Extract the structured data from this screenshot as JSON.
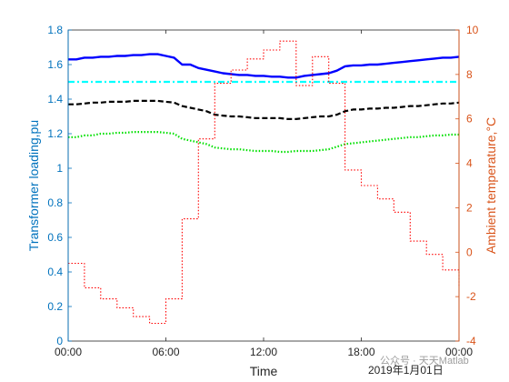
{
  "chart_data": {
    "type": "line",
    "xlabel": "Time",
    "x_tick_labels": [
      "00:00",
      "06:00",
      "12:00",
      "18:00",
      "00:00"
    ],
    "x_tick_hours": [
      0,
      6,
      12,
      18,
      24
    ],
    "x_date_note": "2019年1月01日",
    "xlim": [
      0,
      24
    ],
    "left_axis": {
      "label": "Transformer loading,pu",
      "ylim": [
        0,
        1.8
      ],
      "ticks": [
        "0",
        "0.2",
        "0.4",
        "0.6",
        "0.8",
        "1",
        "1.2",
        "1.4",
        "1.6",
        "1.8"
      ],
      "color": "#0072BD"
    },
    "right_axis": {
      "label": "Ambient temperature,°C",
      "ylim": [
        -4,
        10
      ],
      "ticks": [
        "-4",
        "-2",
        "0",
        "2",
        "4",
        "6",
        "8",
        "10"
      ],
      "color": "#D95319"
    },
    "series": [
      {
        "axis": "left",
        "color": "#0000FF",
        "style": "solid",
        "x": [
          0,
          0.5,
          1,
          1.5,
          2,
          2.5,
          3,
          3.5,
          4,
          4.5,
          5,
          5.5,
          6,
          6.5,
          7,
          7.5,
          8,
          8.5,
          9,
          9.5,
          10,
          10.5,
          11,
          11.5,
          12,
          12.5,
          13,
          13.5,
          14,
          14.5,
          15,
          15.5,
          16,
          16.5,
          17,
          17.5,
          18,
          18.5,
          19,
          19.5,
          20,
          20.5,
          21,
          21.5,
          22,
          22.5,
          23,
          23.5,
          24
        ],
        "values": [
          1.63,
          1.63,
          1.64,
          1.64,
          1.645,
          1.645,
          1.65,
          1.65,
          1.655,
          1.655,
          1.66,
          1.66,
          1.65,
          1.64,
          1.6,
          1.6,
          1.58,
          1.57,
          1.56,
          1.55,
          1.545,
          1.54,
          1.54,
          1.535,
          1.535,
          1.53,
          1.53,
          1.525,
          1.525,
          1.535,
          1.54,
          1.545,
          1.55,
          1.565,
          1.59,
          1.595,
          1.595,
          1.6,
          1.6,
          1.605,
          1.61,
          1.615,
          1.62,
          1.625,
          1.63,
          1.635,
          1.64,
          1.64,
          1.645
        ]
      },
      {
        "axis": "left",
        "color": "#00FFFF",
        "style": "dashdot",
        "x": [
          0,
          24
        ],
        "values": [
          1.5,
          1.5
        ]
      },
      {
        "axis": "left",
        "color": "#000000",
        "style": "dashed",
        "x": [
          0,
          0.5,
          1,
          1.5,
          2,
          2.5,
          3,
          3.5,
          4,
          4.5,
          5,
          5.5,
          6,
          6.5,
          7,
          7.5,
          8,
          8.5,
          9,
          9.5,
          10,
          10.5,
          11,
          11.5,
          12,
          12.5,
          13,
          13.5,
          14,
          14.5,
          15,
          15.5,
          16,
          16.5,
          17,
          17.5,
          18,
          18.5,
          19,
          19.5,
          20,
          20.5,
          21,
          21.5,
          22,
          22.5,
          23,
          23.5,
          24
        ],
        "values": [
          1.37,
          1.37,
          1.375,
          1.38,
          1.38,
          1.385,
          1.385,
          1.385,
          1.39,
          1.39,
          1.39,
          1.39,
          1.385,
          1.38,
          1.36,
          1.35,
          1.34,
          1.33,
          1.31,
          1.305,
          1.3,
          1.3,
          1.295,
          1.29,
          1.29,
          1.29,
          1.29,
          1.285,
          1.285,
          1.29,
          1.295,
          1.3,
          1.3,
          1.31,
          1.33,
          1.34,
          1.34,
          1.345,
          1.345,
          1.35,
          1.35,
          1.355,
          1.36,
          1.36,
          1.365,
          1.37,
          1.375,
          1.375,
          1.38
        ]
      },
      {
        "axis": "left",
        "color": "#00E000",
        "style": "dotted",
        "x": [
          0,
          0.5,
          1,
          1.5,
          2,
          2.5,
          3,
          3.5,
          4,
          4.5,
          5,
          5.5,
          6,
          6.5,
          7,
          7.5,
          8,
          8.5,
          9,
          9.5,
          10,
          10.5,
          11,
          11.5,
          12,
          12.5,
          13,
          13.5,
          14,
          14.5,
          15,
          15.5,
          16,
          16.5,
          17,
          17.5,
          18,
          18.5,
          19,
          19.5,
          20,
          20.5,
          21,
          21.5,
          22,
          22.5,
          23,
          23.5,
          24
        ],
        "values": [
          1.18,
          1.18,
          1.19,
          1.19,
          1.2,
          1.2,
          1.205,
          1.205,
          1.21,
          1.21,
          1.21,
          1.21,
          1.205,
          1.2,
          1.17,
          1.16,
          1.15,
          1.14,
          1.12,
          1.115,
          1.11,
          1.11,
          1.105,
          1.1,
          1.1,
          1.1,
          1.095,
          1.095,
          1.1,
          1.1,
          1.1,
          1.105,
          1.11,
          1.125,
          1.14,
          1.145,
          1.15,
          1.155,
          1.16,
          1.165,
          1.17,
          1.175,
          1.18,
          1.18,
          1.185,
          1.19,
          1.19,
          1.195,
          1.195
        ]
      },
      {
        "axis": "right",
        "color": "#FF0000",
        "style": "dotted",
        "step": true,
        "x": [
          0,
          1,
          2,
          3,
          4,
          5,
          6,
          7,
          8,
          9,
          10,
          11,
          12,
          13,
          14,
          15,
          16,
          17,
          18,
          19,
          20,
          21,
          22,
          23,
          24
        ],
        "values": [
          -0.5,
          -1.6,
          -2.1,
          -2.5,
          -2.9,
          -3.2,
          -2.1,
          1.5,
          5.1,
          7.6,
          8.2,
          8.7,
          9.1,
          9.5,
          7.5,
          8.8,
          7.6,
          3.7,
          3.0,
          2.4,
          1.8,
          0.5,
          -0.1,
          -0.8,
          -1.6
        ]
      }
    ]
  },
  "watermark": {
    "text": "公众号 · 天天Matlab"
  }
}
